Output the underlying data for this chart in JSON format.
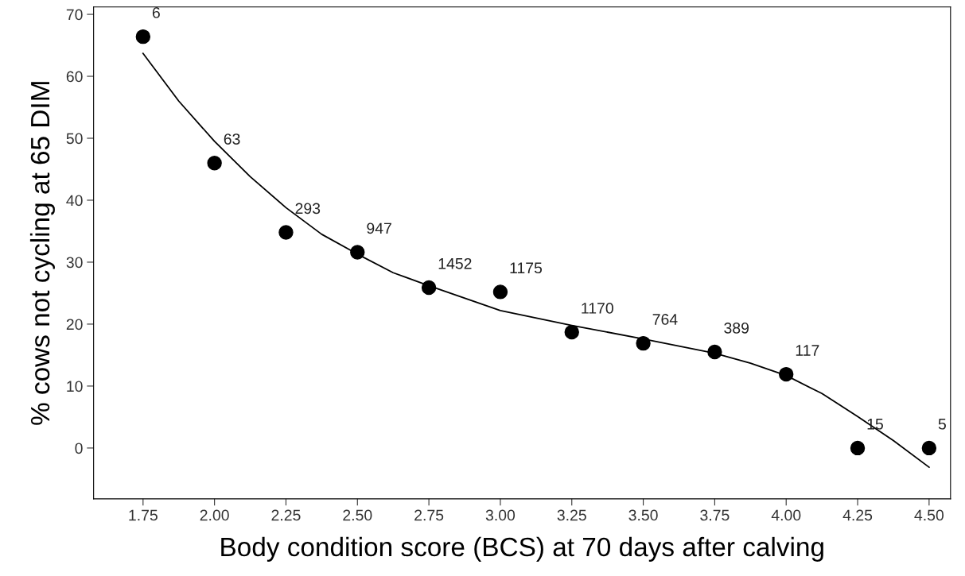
{
  "chart_data": {
    "type": "scatter",
    "xlabel": "Body condition score (BCS) at 70 days after calving",
    "ylabel": "% cows not cycling at 65 DIM",
    "series": [
      {
        "color": "#000000",
        "marker": "circle",
        "x": [
          1.75,
          2.0,
          2.25,
          2.5,
          2.75,
          3.0,
          3.25,
          3.5,
          3.75,
          4.0,
          4.25,
          4.5
        ],
        "values": [
          66.4,
          46.0,
          34.8,
          31.6,
          25.9,
          25.2,
          18.7,
          16.9,
          15.5,
          11.9,
          0,
          0
        ]
      },
      {
        "type": "line",
        "color": "#000000",
        "marker": "none",
        "x": [
          1.75,
          1.875,
          2.0,
          2.125,
          2.25,
          2.375,
          2.5,
          2.625,
          2.75,
          3.0,
          3.25,
          3.5,
          3.75,
          3.875,
          4.0,
          4.125,
          4.25,
          4.375,
          4.5
        ],
        "values": [
          63.7,
          56.0,
          49.5,
          43.8,
          38.8,
          34.5,
          31.3,
          28.3,
          26.2,
          22.2,
          19.8,
          17.6,
          15.3,
          13.7,
          11.7,
          8.8,
          5.1,
          1.2,
          -3.1
        ]
      }
    ],
    "annotations": [
      {
        "text": "6",
        "x": 1.75,
        "y": 66.4
      },
      {
        "text": "63",
        "x": 2.0,
        "y": 46.0
      },
      {
        "text": "293",
        "x": 2.25,
        "y": 34.8
      },
      {
        "text": "947",
        "x": 2.5,
        "y": 31.6
      },
      {
        "text": "1452",
        "x": 2.75,
        "y": 25.9
      },
      {
        "text": "1175",
        "x": 3.0,
        "y": 25.2
      },
      {
        "text": "1170",
        "x": 3.25,
        "y": 18.7
      },
      {
        "text": "764",
        "x": 3.5,
        "y": 16.9
      },
      {
        "text": "389",
        "x": 3.75,
        "y": 15.5
      },
      {
        "text": "117",
        "x": 4.0,
        "y": 11.9
      },
      {
        "text": "15",
        "x": 4.25,
        "y": 0
      },
      {
        "text": "5",
        "x": 4.5,
        "y": 0
      }
    ],
    "xlim": [
      1.577,
      4.575
    ],
    "ylim": [
      -8.2,
      71.2
    ],
    "xticks": [
      {
        "value": 1.75,
        "label": "1.75"
      },
      {
        "value": 2.0,
        "label": "2.00"
      },
      {
        "value": 2.25,
        "label": "2.25"
      },
      {
        "value": 2.5,
        "label": "2.50"
      },
      {
        "value": 2.75,
        "label": "2.75"
      },
      {
        "value": 3.0,
        "label": "3.00"
      },
      {
        "value": 3.25,
        "label": "3.25"
      },
      {
        "value": 3.5,
        "label": "3.50"
      },
      {
        "value": 3.75,
        "label": "3.75"
      },
      {
        "value": 4.0,
        "label": "4.00"
      },
      {
        "value": 4.25,
        "label": "4.25"
      },
      {
        "value": 4.5,
        "label": "4.50"
      }
    ],
    "yticks": [
      0,
      10,
      20,
      30,
      40,
      50,
      60,
      70
    ],
    "grid": false,
    "legend": false
  }
}
